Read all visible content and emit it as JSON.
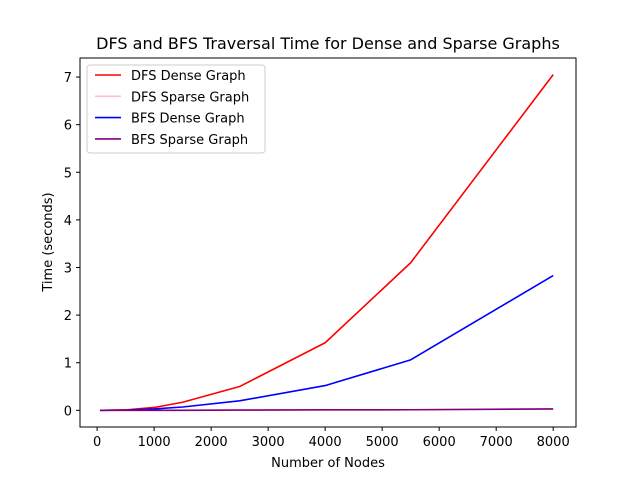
{
  "chart_data": {
    "type": "line",
    "title": "DFS and BFS Traversal Time for Dense and Sparse Graphs",
    "xlabel": "Number of Nodes",
    "ylabel": "Time (seconds)",
    "xlim": [
      -300,
      8400
    ],
    "ylim": [
      -0.35,
      7.4
    ],
    "xticks": [
      0,
      1000,
      2000,
      3000,
      4000,
      5000,
      6000,
      7000,
      8000
    ],
    "yticks": [
      0,
      1,
      2,
      3,
      4,
      5,
      6,
      7
    ],
    "grid": false,
    "legend_position": "top-left",
    "x": [
      50,
      100,
      500,
      1000,
      1500,
      2500,
      4000,
      5500,
      8000
    ],
    "series": [
      {
        "name": "DFS Dense Graph",
        "color": "#ff0000",
        "values": [
          0.0,
          0.0,
          0.01,
          0.06,
          0.17,
          0.5,
          1.42,
          3.1,
          7.05
        ]
      },
      {
        "name": "DFS Sparse Graph",
        "color": "#ffc0cb",
        "values": [
          0.0,
          0.0,
          0.0,
          0.0,
          0.0,
          0.005,
          0.01,
          0.012,
          0.03
        ]
      },
      {
        "name": "BFS Dense Graph",
        "color": "#0000ff",
        "values": [
          0.0,
          0.0,
          0.005,
          0.03,
          0.07,
          0.2,
          0.52,
          1.06,
          2.83
        ]
      },
      {
        "name": "BFS Sparse Graph",
        "color": "#800080",
        "values": [
          0.0,
          0.0,
          0.0,
          0.0,
          0.0,
          0.005,
          0.01,
          0.012,
          0.03
        ]
      }
    ]
  }
}
